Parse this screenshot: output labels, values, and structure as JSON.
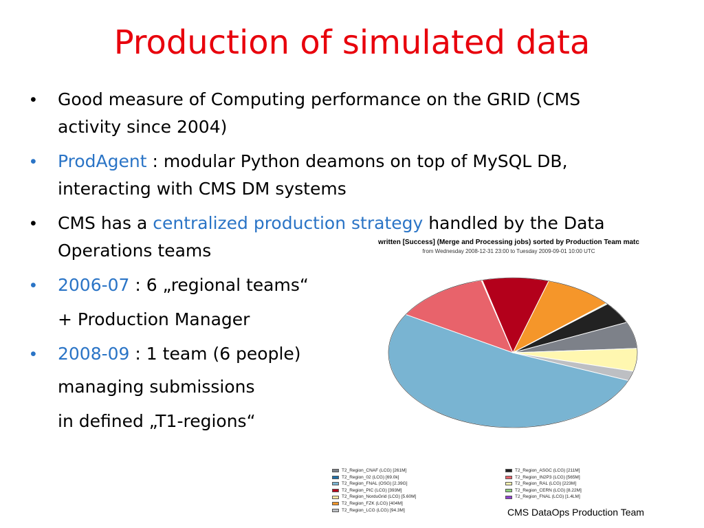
{
  "title": "Production of simulated data",
  "bullets": [
    {
      "bullet": "•",
      "parts": [
        {
          "text": "Good measure of Computing performance on the GRID (CMS"
        }
      ]
    },
    {
      "parts": [
        {
          "text": "activity since 2004)"
        }
      ]
    },
    {
      "bullet": "•",
      "parts": [
        {
          "text": "ProdAgent",
          "blue": true
        },
        {
          "text": " : modular Python deamons on top of MySQL DB,"
        }
      ]
    },
    {
      "parts": [
        {
          "text": "interacting with CMS DM systems"
        }
      ]
    },
    {
      "bullet": "•",
      "parts": [
        {
          "text": "CMS has a "
        },
        {
          "text": "centralized production strategy",
          "blue": true
        },
        {
          "text": " handled by the Data"
        }
      ]
    },
    {
      "parts": [
        {
          "text": "Operations teams"
        }
      ]
    },
    {
      "bullet": "•",
      "parts": [
        {
          "text": "2006-07",
          "blue": true
        },
        {
          "text": " : 6 „regional teams“"
        }
      ]
    },
    {
      "parts": [
        {
          "text": "+ Production Manager"
        }
      ]
    },
    {
      "bullet": "•",
      "parts": [
        {
          "text": "2008-09",
          "blue": true
        },
        {
          "text": " : 1 team (6 people)"
        }
      ]
    },
    {
      "parts": [
        {
          "text": "managing submissions"
        }
      ]
    },
    {
      "parts": [
        {
          "text": "in defined „T1-regions“"
        }
      ]
    }
  ],
  "colors": {
    "title": "#e8000c",
    "accent": "#2a74c6"
  },
  "chart_data": {
    "type": "pie",
    "title": "written [Success] (Merge and Processing jobs) sorted by Production Team matc",
    "subtitle": "from Wednesday 2008-12-31 23:00 to Tuesday 2009-09-01 10:00 UTC",
    "unit": "events",
    "slices": [
      {
        "label": "T2_Region_CNAF (LCG) [261M]",
        "value": 261,
        "color": "#7d8189"
      },
      {
        "label": "T2_Region_02 (LCG) [69.0k]",
        "value": 0.069,
        "color": "#1f6fa8"
      },
      {
        "label": "T2_Region_FNAL (OSG) [2.39G]",
        "value": 2390,
        "color": "#79b4d2"
      },
      {
        "label": "T2_Region_PIC (LCG) [393M]",
        "value": 393,
        "color": "#b3001b"
      },
      {
        "label": "T2_Region_NorduGrid (LCG) [5.60M]",
        "value": 5.6,
        "color": "#fde3a0"
      },
      {
        "label": "T2_Region_FZK (LCG) [404M]",
        "value": 404,
        "color": "#f5962a"
      },
      {
        "label": "T2_Region_LCG (LCG) [94.3M]",
        "value": 94.3,
        "color": "#bdbfc3"
      },
      {
        "label": "T2_Region_ASGC (LCG) [211M]",
        "value": 211,
        "color": "#222222"
      },
      {
        "label": "T2_Region_IN2P3 (LCG) [565M]",
        "value": 565,
        "color": "#e8636b"
      },
      {
        "label": "T2_Region_RAL (LCG) [223M]",
        "value": 223,
        "color": "#fff7b0"
      },
      {
        "label": "T2_Region_CERN (LCG) [8.22M]",
        "value": 8.22,
        "color": "#8ed17c"
      },
      {
        "label": "T2_Region_FNAL (LCG) [1.4LM]",
        "value": 1.41,
        "color": "#8f3fd2"
      }
    ]
  },
  "footer": {
    "credit": "CMS DataOps Production Team"
  }
}
